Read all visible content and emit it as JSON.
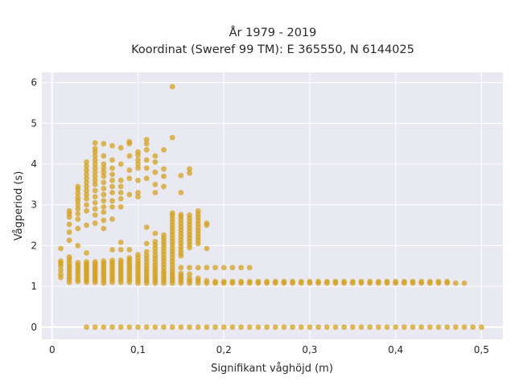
{
  "chart_data": {
    "type": "scatter",
    "title_lines": [
      "År 1979 - 2019",
      "Koordinat (Sweref 99 TM): E 365550, N 6144025"
    ],
    "xlabel": "Signifikant våghöjd (m)",
    "ylabel": "Vågperiod (s)",
    "xlim": [
      -0.012,
      0.525
    ],
    "ylim": [
      -0.3,
      6.25
    ],
    "xticks": [
      0,
      0.1,
      0.2,
      0.3,
      0.4,
      0.5
    ],
    "xtick_labels": [
      "0",
      "0,1",
      "0,2",
      "0,3",
      "0,4",
      "0,5"
    ],
    "yticks": [
      0,
      1,
      2,
      3,
      4,
      5,
      6
    ],
    "ytick_labels": [
      "0",
      "1",
      "2",
      "3",
      "4",
      "5",
      "6"
    ],
    "grid": true,
    "color": "#d4a017",
    "background": "#e9e9f1",
    "columns": [
      {
        "x": 0.01,
        "y": [
          1.22,
          1.3,
          1.4,
          1.5,
          1.57,
          1.62,
          1.93
        ]
      },
      {
        "x": 0.02,
        "y": [
          1.1,
          1.17,
          1.23,
          1.3,
          1.37,
          1.44,
          1.5,
          1.57,
          1.65,
          1.72,
          2.13,
          2.33,
          2.52,
          2.7,
          2.78,
          2.85
        ]
      },
      {
        "x": 0.03,
        "y": [
          1.12,
          1.18,
          1.25,
          1.32,
          1.38,
          1.45,
          1.52,
          1.58,
          2.0,
          2.42,
          2.65,
          2.78,
          2.9,
          3.0,
          3.1,
          3.18,
          3.28,
          3.38,
          3.45
        ]
      },
      {
        "x": 0.04,
        "y": [
          0.0,
          1.1,
          1.15,
          1.2,
          1.25,
          1.3,
          1.35,
          1.4,
          1.45,
          1.5,
          1.55,
          1.6,
          1.82,
          2.5,
          2.85,
          3.0,
          3.15,
          3.25,
          3.35,
          3.45,
          3.55,
          3.65,
          3.75,
          3.85,
          3.95,
          4.05
        ]
      },
      {
        "x": 0.05,
        "y": [
          0.0,
          1.1,
          1.15,
          1.2,
          1.25,
          1.3,
          1.35,
          1.4,
          1.45,
          1.5,
          1.55,
          1.6,
          2.55,
          2.75,
          2.9,
          3.05,
          3.2,
          3.35,
          3.5,
          3.6,
          3.7,
          3.8,
          3.9,
          4.0,
          4.1,
          4.2,
          4.3,
          4.38,
          4.52
        ]
      },
      {
        "x": 0.06,
        "y": [
          0.0,
          1.08,
          1.14,
          1.2,
          1.26,
          1.32,
          1.38,
          1.44,
          1.5,
          1.56,
          1.62,
          2.42,
          2.62,
          2.82,
          2.95,
          3.1,
          3.25,
          3.4,
          3.55,
          3.7,
          3.8,
          3.9,
          4.0,
          4.2,
          4.5
        ]
      },
      {
        "x": 0.07,
        "y": [
          0.0,
          1.1,
          1.16,
          1.22,
          1.28,
          1.34,
          1.4,
          1.46,
          1.52,
          1.58,
          1.64,
          1.9,
          2.65,
          2.95,
          3.1,
          3.3,
          3.45,
          3.6,
          3.75,
          3.9,
          4.1,
          4.45
        ]
      },
      {
        "x": 0.08,
        "y": [
          0.0,
          1.1,
          1.16,
          1.22,
          1.28,
          1.34,
          1.4,
          1.46,
          1.52,
          1.58,
          1.64,
          1.9,
          2.08,
          2.95,
          3.15,
          3.3,
          3.45,
          3.6,
          4.0,
          4.4
        ]
      },
      {
        "x": 0.09,
        "y": [
          0.0,
          1.1,
          1.16,
          1.22,
          1.28,
          1.34,
          1.4,
          1.46,
          1.52,
          1.58,
          1.64,
          1.7,
          1.9,
          3.25,
          3.65,
          3.85,
          4.2,
          4.5,
          4.55
        ]
      },
      {
        "x": 0.1,
        "y": [
          0.0,
          1.08,
          1.14,
          1.2,
          1.26,
          1.32,
          1.38,
          1.44,
          1.5,
          1.56,
          1.62,
          1.7,
          1.78,
          3.2,
          3.3,
          3.6,
          3.9,
          4.0,
          4.1,
          4.22,
          4.3
        ]
      },
      {
        "x": 0.11,
        "y": [
          0.0,
          1.08,
          1.14,
          1.2,
          1.26,
          1.32,
          1.38,
          1.45,
          1.52,
          1.6,
          1.68,
          1.76,
          1.85,
          2.05,
          2.45,
          3.65,
          3.9,
          4.1,
          4.35,
          4.5,
          4.6
        ]
      },
      {
        "x": 0.12,
        "y": [
          0.0,
          1.08,
          1.14,
          1.2,
          1.26,
          1.32,
          1.38,
          1.45,
          1.52,
          1.6,
          1.68,
          1.76,
          1.85,
          1.94,
          2.02,
          2.1,
          2.3,
          3.3,
          3.5,
          3.8,
          4.05,
          4.2
        ]
      },
      {
        "x": 0.13,
        "y": [
          0.0,
          1.08,
          1.14,
          1.2,
          1.26,
          1.32,
          1.38,
          1.46,
          1.54,
          1.62,
          1.7,
          1.78,
          1.86,
          1.94,
          2.02,
          2.1,
          2.18,
          2.26,
          3.45,
          3.7,
          3.88,
          4.35
        ]
      },
      {
        "x": 0.14,
        "y": [
          0.0,
          1.08,
          1.14,
          1.2,
          1.26,
          1.32,
          1.38,
          1.46,
          1.54,
          1.62,
          1.7,
          1.78,
          1.86,
          1.94,
          2.02,
          2.1,
          2.18,
          2.26,
          2.34,
          2.42,
          2.5,
          2.58,
          2.66,
          2.74,
          2.8,
          4.65,
          5.9
        ]
      },
      {
        "x": 0.15,
        "y": [
          0.0,
          1.08,
          1.14,
          1.2,
          1.26,
          1.32,
          1.46,
          1.75,
          1.82,
          1.9,
          1.98,
          2.06,
          2.14,
          2.22,
          2.3,
          2.38,
          2.46,
          2.54,
          2.62,
          2.7,
          2.76,
          3.3,
          3.72
        ]
      },
      {
        "x": 0.16,
        "y": [
          0.0,
          1.08,
          1.14,
          1.2,
          1.3,
          1.46,
          1.95,
          2.03,
          2.11,
          2.19,
          2.27,
          2.35,
          2.43,
          2.51,
          2.59,
          2.67,
          2.75,
          3.78,
          3.88
        ]
      },
      {
        "x": 0.17,
        "y": [
          0.0,
          1.08,
          1.14,
          1.2,
          1.46,
          2.05,
          2.13,
          2.21,
          2.29,
          2.37,
          2.45,
          2.53,
          2.61,
          2.69,
          2.77,
          2.85
        ]
      },
      {
        "x": 0.18,
        "y": [
          0.0,
          1.08,
          1.14,
          1.46,
          1.93,
          2.5,
          2.55
        ]
      },
      {
        "x": 0.19,
        "y": [
          0.0,
          1.08,
          1.12,
          1.46
        ]
      },
      {
        "x": 0.2,
        "y": [
          0.0,
          1.08,
          1.12,
          1.46
        ]
      },
      {
        "x": 0.21,
        "y": [
          0.0,
          1.08,
          1.12,
          1.46
        ]
      },
      {
        "x": 0.22,
        "y": [
          0.0,
          1.08,
          1.12,
          1.46
        ]
      },
      {
        "x": 0.23,
        "y": [
          0.0,
          1.08,
          1.12,
          1.46
        ]
      },
      {
        "x": 0.24,
        "y": [
          0.0,
          1.08,
          1.12
        ]
      },
      {
        "x": 0.25,
        "y": [
          0.0,
          1.08,
          1.12
        ]
      },
      {
        "x": 0.26,
        "y": [
          0.0,
          1.08,
          1.12
        ]
      },
      {
        "x": 0.27,
        "y": [
          0.0,
          1.08,
          1.12
        ]
      },
      {
        "x": 0.28,
        "y": [
          0.0,
          1.08,
          1.12
        ]
      },
      {
        "x": 0.29,
        "y": [
          0.0,
          1.08,
          1.12
        ]
      },
      {
        "x": 0.3,
        "y": [
          0.0,
          1.08,
          1.12
        ]
      },
      {
        "x": 0.31,
        "y": [
          0.0,
          1.08,
          1.12
        ]
      },
      {
        "x": 0.32,
        "y": [
          0.0,
          1.08,
          1.12
        ]
      },
      {
        "x": 0.33,
        "y": [
          0.0,
          1.08,
          1.12
        ]
      },
      {
        "x": 0.34,
        "y": [
          0.0,
          1.08,
          1.12
        ]
      },
      {
        "x": 0.35,
        "y": [
          0.0,
          1.08,
          1.12
        ]
      },
      {
        "x": 0.36,
        "y": [
          0.0,
          1.08,
          1.12
        ]
      },
      {
        "x": 0.37,
        "y": [
          0.0,
          1.08,
          1.12
        ]
      },
      {
        "x": 0.38,
        "y": [
          0.0,
          1.08,
          1.12
        ]
      },
      {
        "x": 0.39,
        "y": [
          0.0,
          1.08,
          1.12
        ]
      },
      {
        "x": 0.4,
        "y": [
          0.0,
          1.08,
          1.12
        ]
      },
      {
        "x": 0.41,
        "y": [
          0.0,
          1.08,
          1.12
        ]
      },
      {
        "x": 0.42,
        "y": [
          0.0,
          1.08,
          1.12
        ]
      },
      {
        "x": 0.43,
        "y": [
          0.0,
          1.08,
          1.12
        ]
      },
      {
        "x": 0.44,
        "y": [
          0.0,
          1.08,
          1.12
        ]
      },
      {
        "x": 0.45,
        "y": [
          0.0,
          1.08,
          1.12
        ]
      },
      {
        "x": 0.46,
        "y": [
          0.0,
          1.08,
          1.12
        ]
      },
      {
        "x": 0.47,
        "y": [
          0.0,
          1.08
        ]
      },
      {
        "x": 0.48,
        "y": [
          0.0,
          1.08
        ]
      },
      {
        "x": 0.49,
        "y": [
          0.0
        ]
      },
      {
        "x": 0.5,
        "y": [
          0.0
        ]
      }
    ]
  }
}
